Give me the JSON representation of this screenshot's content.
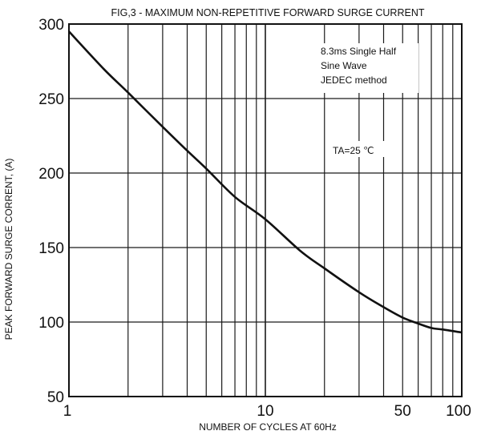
{
  "chart_data": {
    "type": "line",
    "title": "FIG,3 - MAXIMUM NON-REPETITIVE FORWARD SURGE CURRENT",
    "xlabel": "NUMBER OF CYCLES AT 60Hz",
    "ylabel": "PEAK FORWARD SURGE CORRENT, (A)",
    "x_scale": "log",
    "xlim": [
      1,
      100
    ],
    "ylim": [
      50,
      300
    ],
    "x_tick_labels": [
      "1",
      "10",
      "50",
      "100"
    ],
    "y_tick_labels": [
      "300",
      "250",
      "200",
      "150",
      "100",
      "50"
    ],
    "grid": true,
    "annotations": [
      "8.3ms Single Half",
      "Sine Wave",
      "JEDEC method",
      "TA=25 ℃"
    ],
    "series": [
      {
        "x": [
          1,
          1.5,
          2,
          3,
          4,
          5,
          7,
          10,
          15,
          20,
          30,
          40,
          50,
          60,
          70,
          80,
          100
        ],
        "y": [
          295,
          270,
          254,
          231,
          215,
          203,
          184,
          169,
          148,
          136,
          120,
          110,
          103,
          99,
          96,
          95,
          93
        ]
      }
    ]
  },
  "colors": {
    "grid": "#1a1a1a",
    "curve": "#111111",
    "background": "#ffffff"
  }
}
